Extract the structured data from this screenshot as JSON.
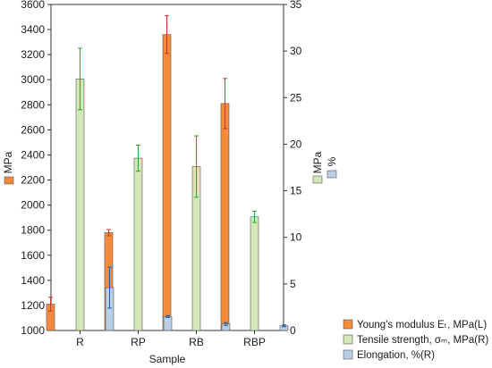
{
  "chart_data": {
    "type": "bar",
    "xlabel": "Sample",
    "categories": [
      "R",
      "RP",
      "RB",
      "RBP"
    ],
    "y_left": {
      "label": "MPa",
      "lim": [
        1000,
        3600
      ],
      "ticks": [
        "1000",
        "1200",
        "1400",
        "1600",
        "1800",
        "2000",
        "2200",
        "2400",
        "2600",
        "2800",
        "3000",
        "3200",
        "3400",
        "3600"
      ]
    },
    "y_right": {
      "label_mpa": "MPa",
      "label_pct": "%",
      "lim": [
        0,
        35
      ],
      "ticks": [
        "0",
        "5",
        "10",
        "15",
        "20",
        "25",
        "30",
        "35"
      ]
    },
    "series": [
      {
        "name": "Young's modulus Eₜ, MPa(L)",
        "axis": "left",
        "color": "#f58a3b",
        "values": [
          1210,
          1780,
          3360,
          2810
        ],
        "errors": [
          55,
          25,
          150,
          200
        ]
      },
      {
        "name": "Tensile strength, σₘ, MPa(R)",
        "axis": "right",
        "color": "#d3e7b8",
        "values": [
          27.0,
          18.5,
          17.6,
          12.2
        ],
        "errors": [
          3.3,
          1.4,
          3.3,
          0.6
        ]
      },
      {
        "name": "Elongation, %(R)",
        "axis": "right",
        "color": "#b8cfe6",
        "values": [
          4.6,
          1.5,
          0.7,
          0.5
        ],
        "errors": [
          2.2,
          0.1,
          0.15,
          0.1
        ]
      }
    ],
    "legend_position": "bottom-right",
    "grid": false
  }
}
